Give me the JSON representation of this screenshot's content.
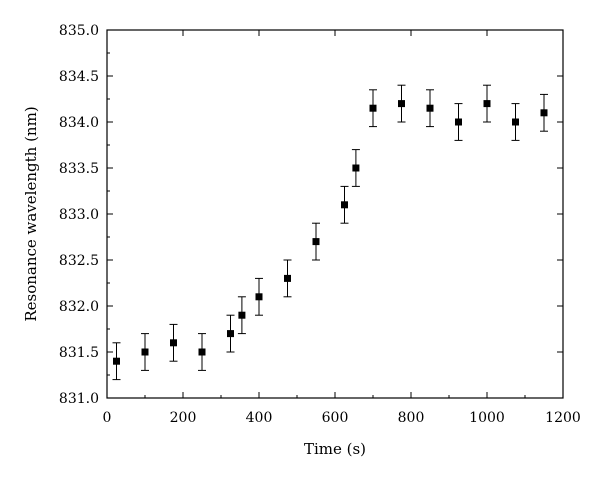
{
  "chart_data": {
    "type": "scatter",
    "title": "",
    "xlabel": "Time (s)",
    "ylabel": "Resonance wavelength (nm)",
    "xlim": [
      0,
      1200
    ],
    "ylim": [
      831.0,
      835.0
    ],
    "xticks": [
      0,
      200,
      400,
      600,
      800,
      1000,
      1200
    ],
    "yticks": [
      831.0,
      831.5,
      832.0,
      832.5,
      833.0,
      833.5,
      834.0,
      834.5,
      835.0
    ],
    "xtick_labels": [
      "0",
      "200",
      "400",
      "600",
      "800",
      "1000",
      "1200"
    ],
    "ytick_labels": [
      "831.0",
      "831.5",
      "832.0",
      "832.5",
      "833.0",
      "833.5",
      "834.0",
      "834.5",
      "835.0"
    ],
    "grid": false,
    "marker": "square",
    "series": [
      {
        "x": [
          25,
          100,
          175,
          250,
          325,
          355,
          400,
          475,
          550,
          625,
          655,
          700,
          775,
          850,
          925,
          1000,
          1075,
          1150
        ],
        "y": [
          831.4,
          831.5,
          831.6,
          831.5,
          831.7,
          831.9,
          832.1,
          832.3,
          832.7,
          833.1,
          833.5,
          834.15,
          834.2,
          834.15,
          834.0,
          834.2,
          834.0,
          834.1
        ],
        "error": [
          0.2,
          0.2,
          0.2,
          0.2,
          0.2,
          0.2,
          0.2,
          0.2,
          0.2,
          0.2,
          0.2,
          0.2,
          0.2,
          0.2,
          0.2,
          0.2,
          0.2,
          0.2
        ]
      }
    ]
  }
}
